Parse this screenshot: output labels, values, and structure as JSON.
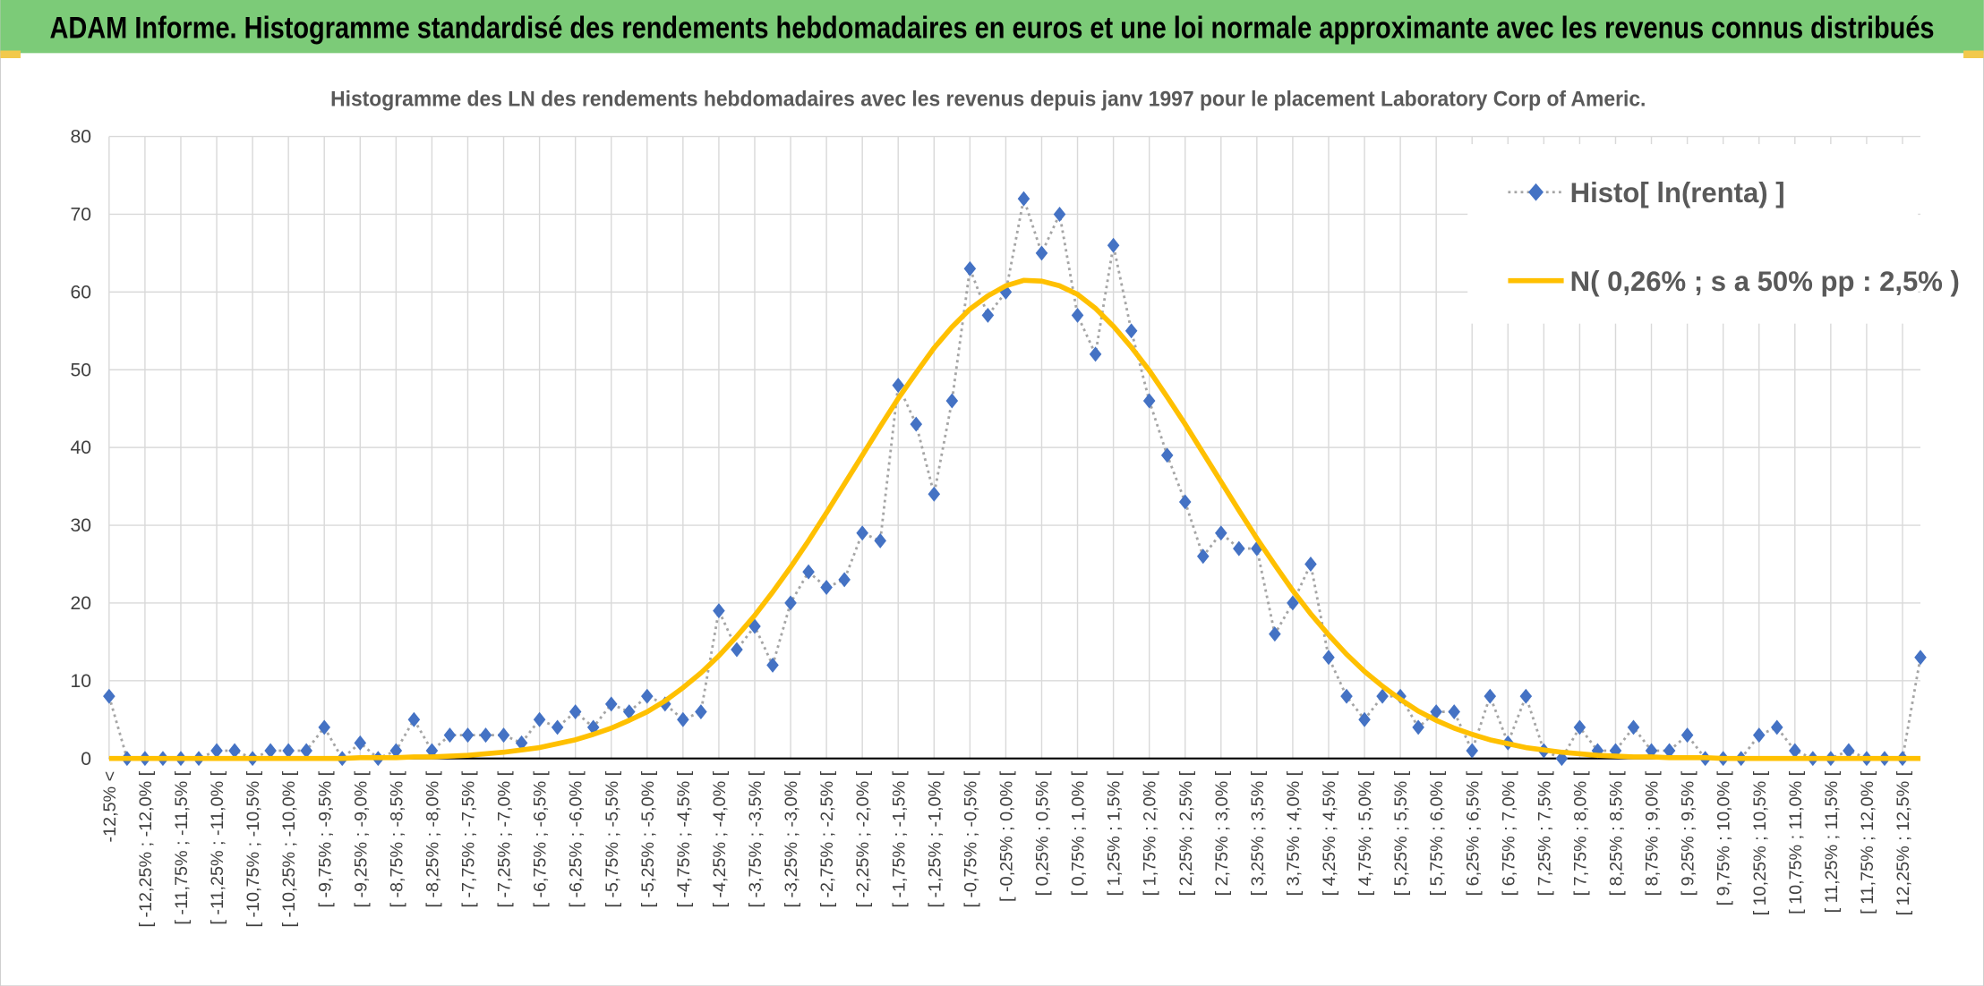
{
  "banner": {
    "title": "ADAM Informe. Histogramme standardisé des rendements hebdomadaires en euros et une loi normale approximante avec les revenus connus distribués"
  },
  "chart_data": {
    "type": "line",
    "title": "Histogramme des LN des rendements hebdomadaires avec les revenus depuis janv 1997 pour le placement Laboratory Corp of Americ.",
    "categories": [
      "-12,5% <",
      null,
      "[ -12,25% ; -12,0% [",
      null,
      "[ -11,75% ; -11,5% [",
      null,
      "[ -11,25% ; -11,0% [",
      null,
      "[ -10,75% ; -10,5% [",
      null,
      "[ -10,25% ; -10,0% [",
      null,
      "[ -9,75% ; -9,5% [",
      null,
      "[ -9,25% ; -9,0% [",
      null,
      "[ -8,75% ; -8,5% [",
      null,
      "[ -8,25% ; -8,0% [",
      null,
      "[ -7,75% ; -7,5% [",
      null,
      "[ -7,25% ; -7,0% [",
      null,
      "[ -6,75% ; -6,5% [",
      null,
      "[ -6,25% ; -6,0% [",
      null,
      "[ -5,75% ; -5,5% [",
      null,
      "[ -5,25% ; -5,0% [",
      null,
      "[ -4,75% ; -4,5% [",
      null,
      "[ -4,25% ; -4,0% [",
      null,
      "[ -3,75% ; -3,5% [",
      null,
      "[ -3,25% ; -3,0% [",
      null,
      "[ -2,75% ; -2,5% [",
      null,
      "[ -2,25% ; -2,0% [",
      null,
      "[ -1,75% ; -1,5% [",
      null,
      "[ -1,25% ; -1,0% [",
      null,
      "[ -0,75% ; -0,5% [",
      null,
      "[ -0,25% ; 0,0% [",
      null,
      "[ 0,25% ; 0,5% [",
      null,
      "[ 0,75% ; 1,0% [",
      null,
      "[ 1,25% ; 1,5% [",
      null,
      "[ 1,75% ; 2,0% [",
      null,
      "[ 2,25% ; 2,5% [",
      null,
      "[ 2,75% ; 3,0% [",
      null,
      "[ 3,25% ; 3,5% [",
      null,
      "[ 3,75% ; 4,0% [",
      null,
      "[ 4,25% ; 4,5% [",
      null,
      "[ 4,75% ; 5,0% [",
      null,
      "[ 5,25% ; 5,5% [",
      null,
      "[ 5,75% ; 6,0% [",
      null,
      "[ 6,25% ; 6,5% [",
      null,
      "[ 6,75% ; 7,0% [",
      null,
      "[ 7,25% ; 7,5% [",
      null,
      "[ 7,75% ; 8,0% [",
      null,
      "[ 8,25% ; 8,5% [",
      null,
      "[ 8,75% ; 9,0% [",
      null,
      "[ 9,25% ; 9,5% [",
      null,
      "[ 9,75% ; 10,0% [",
      null,
      "[ 10,25% ; 10,5% [",
      null,
      "[ 10,75% ; 11,0% [",
      null,
      "[ 11,25% ; 11,5% [",
      null,
      "[ 11,75% ; 12,0% [",
      null,
      "[ 12,25% ; 12,5% [",
      null
    ],
    "series": [
      {
        "name": "Histo[ ln(renta) ]",
        "color": "#4472c4",
        "line_color": "#a5a5a5",
        "values": [
          8,
          0,
          0,
          0,
          0,
          0,
          1,
          1,
          0,
          1,
          1,
          1,
          4,
          0,
          2,
          0,
          1,
          5,
          1,
          3,
          3,
          3,
          3,
          2,
          5,
          4,
          6,
          4,
          7,
          6,
          8,
          7,
          5,
          6,
          19,
          14,
          17,
          12,
          20,
          24,
          22,
          23,
          29,
          28,
          48,
          43,
          34,
          46,
          63,
          57,
          60,
          72,
          65,
          70,
          57,
          52,
          66,
          55,
          46,
          39,
          33,
          26,
          29,
          27,
          27,
          16,
          20,
          25,
          13,
          8,
          5,
          8,
          8,
          4,
          6,
          6,
          1,
          8,
          2,
          8,
          1,
          0,
          4,
          1,
          1,
          4,
          1,
          1,
          3,
          0,
          0,
          0,
          3,
          4,
          1,
          0,
          0,
          1,
          0,
          0,
          0,
          13
        ]
      },
      {
        "name": "N( 0,26% ; s a 50% pp : 2,5% )",
        "color": "#ffc000",
        "values": [
          0,
          0,
          0,
          0,
          0,
          0,
          0,
          0,
          0,
          0,
          0,
          0,
          0,
          0,
          0.1,
          0.1,
          0.1,
          0.2,
          0.2,
          0.3,
          0.4,
          0.6,
          0.8,
          1.1,
          1.4,
          1.9,
          2.4,
          3.1,
          3.9,
          4.9,
          6.0,
          7.4,
          9.1,
          11.0,
          13.2,
          15.7,
          18.4,
          21.4,
          24.6,
          28.0,
          31.6,
          35.3,
          39.0,
          42.7,
          46.3,
          49.6,
          52.8,
          55.5,
          57.8,
          59.5,
          60.8,
          61.5,
          61.4,
          60.8,
          59.7,
          57.9,
          55.6,
          52.9,
          49.9,
          46.5,
          43.0,
          39.3,
          35.6,
          31.9,
          28.3,
          24.9,
          21.6,
          18.6,
          15.9,
          13.4,
          11.2,
          9.3,
          7.6,
          6.1,
          4.9,
          3.9,
          3.1,
          2.4,
          1.9,
          1.4,
          1.1,
          0.8,
          0.6,
          0.4,
          0.3,
          0.2,
          0.2,
          0.1,
          0.1,
          0.1,
          0,
          0,
          0,
          0,
          0,
          0,
          0,
          0,
          0,
          0,
          0,
          0
        ]
      }
    ],
    "ylim": [
      0,
      80
    ],
    "yticks": [
      0,
      10,
      20,
      30,
      40,
      50,
      60,
      70,
      80
    ],
    "grid": true,
    "legend": "top-right"
  }
}
